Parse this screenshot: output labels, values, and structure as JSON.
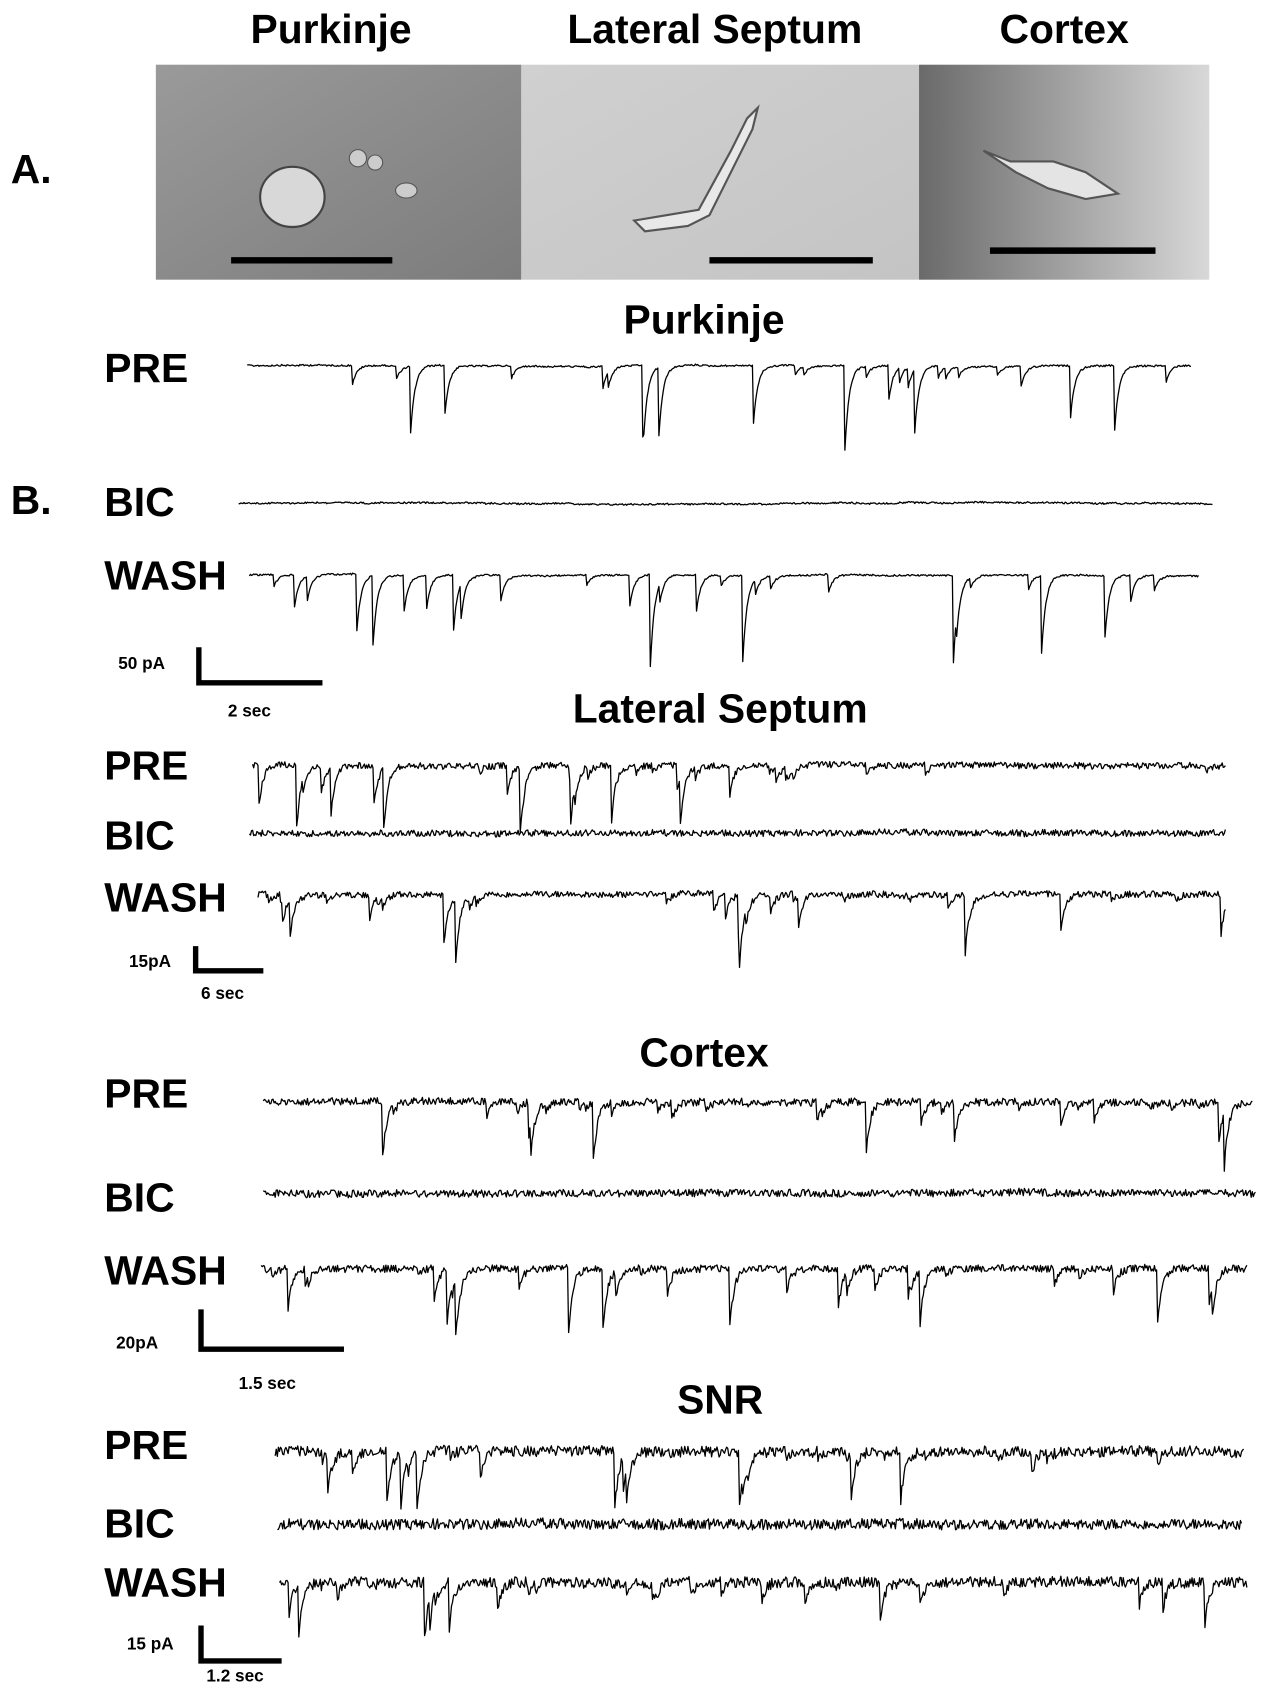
{
  "panel_a": {
    "label": "A.",
    "images": [
      {
        "title": "Purkinje"
      },
      {
        "title": "Lateral Septum"
      },
      {
        "title": "Cortex"
      }
    ]
  },
  "panel_b": {
    "label": "B.",
    "recordings": [
      {
        "title": "Purkinje",
        "traces": [
          "PRE",
          "BIC",
          "WASH"
        ],
        "scale_bar": {
          "current": "50 pA",
          "time": "2 sec"
        }
      },
      {
        "title": "Lateral Septum",
        "traces": [
          "PRE",
          "BIC",
          "WASH"
        ],
        "scale_bar": {
          "current": "15pA",
          "time": "6 sec"
        }
      },
      {
        "title": "Cortex",
        "traces": [
          "PRE",
          "BIC",
          "WASH"
        ],
        "scale_bar": {
          "current": "20pA",
          "time": "1.5 sec"
        }
      },
      {
        "title": "SNR",
        "traces": [
          "PRE",
          "BIC",
          "WASH"
        ],
        "scale_bar": {
          "current": "15 pA",
          "time": "1.2 sec"
        }
      }
    ]
  }
}
